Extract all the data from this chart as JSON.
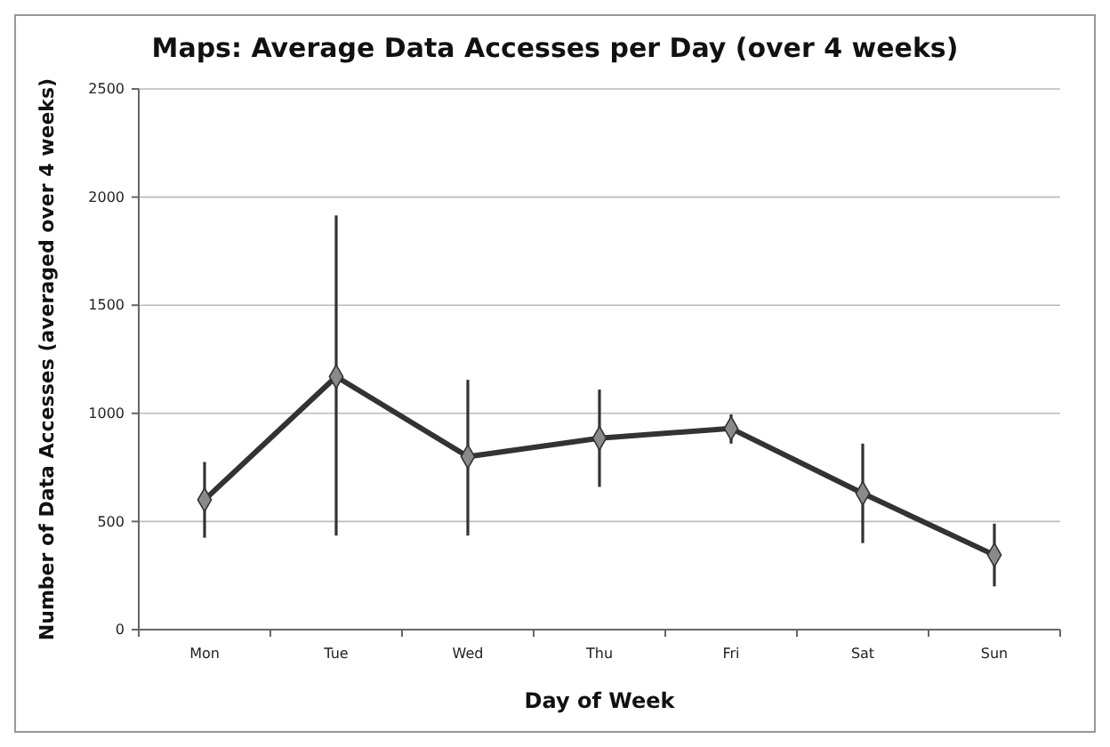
{
  "chart_data": {
    "type": "line",
    "title": "Maps: Average Data Accesses per Day (over 4 weeks)",
    "xlabel": "Day of Week",
    "ylabel": "Number of Data Accesses (averaged over 4 weeks)",
    "categories": [
      "Mon",
      "Tue",
      "Wed",
      "Thu",
      "Fri",
      "Sat",
      "Sun"
    ],
    "series": [
      {
        "color": "#333333",
        "values": [
          600,
          1170,
          800,
          885,
          930,
          630,
          345
        ],
        "errors": [
          [
            425,
            775
          ],
          [
            435,
            1915
          ],
          [
            435,
            1155
          ],
          [
            660,
            1110
          ],
          [
            860,
            995
          ],
          [
            400,
            860
          ],
          [
            200,
            490
          ]
        ]
      }
    ],
    "ylim": [
      0,
      2500
    ],
    "yticks": [
      0,
      500,
      1000,
      1500,
      2000,
      2500
    ],
    "grid": "y",
    "marker": "diamond",
    "line_style": "solid"
  }
}
